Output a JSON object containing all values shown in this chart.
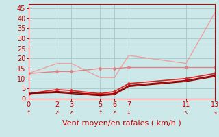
{
  "xlabel": "Vent moyen/en rafales ( km/h )",
  "background_color": "#cce8e8",
  "grid_color": "#aacccc",
  "ylim": [
    0,
    47
  ],
  "yticks": [
    0,
    5,
    10,
    15,
    20,
    25,
    30,
    35,
    40,
    45
  ],
  "xticks": [
    0,
    2,
    3,
    5,
    6,
    7,
    11,
    13
  ],
  "xlim": [
    0,
    13
  ],
  "lines": [
    {
      "x": [
        0,
        2,
        3,
        5,
        6,
        7,
        11,
        13
      ],
      "y": [
        12.5,
        17.5,
        17.5,
        10.5,
        10.5,
        21.5,
        17.5,
        42.5
      ],
      "color": "#f0a0a0",
      "lw": 1.0,
      "marker": null
    },
    {
      "x": [
        0,
        2,
        3,
        5,
        6,
        7,
        11,
        13
      ],
      "y": [
        12.5,
        13.5,
        13.5,
        15.0,
        15.0,
        15.5,
        15.5,
        15.5
      ],
      "color": "#e08080",
      "lw": 1.0,
      "marker": "D",
      "markersize": 2.5
    },
    {
      "x": [
        0,
        2,
        3,
        5,
        6,
        7,
        11,
        13
      ],
      "y": [
        2.5,
        4.5,
        4.0,
        2.5,
        3.5,
        7.5,
        10.0,
        12.5
      ],
      "color": "#dd2222",
      "lw": 1.2,
      "marker": "D",
      "markersize": 2.5
    },
    {
      "x": [
        0,
        2,
        3,
        5,
        6,
        7,
        11,
        13
      ],
      "y": [
        2.5,
        3.5,
        3.0,
        2.0,
        2.5,
        6.5,
        9.0,
        11.5
      ],
      "color": "#aa0000",
      "lw": 1.2,
      "marker": null
    },
    {
      "x": [
        0,
        2,
        3,
        5,
        6,
        7,
        11,
        13
      ],
      "y": [
        2.5,
        3.0,
        2.5,
        1.5,
        2.0,
        6.0,
        8.5,
        11.0
      ],
      "color": "#880000",
      "lw": 1.0,
      "marker": null
    }
  ],
  "arrow_chars": [
    "↑",
    "↗",
    "↗",
    "↑",
    "↗",
    "↓",
    "↖",
    "↘"
  ],
  "xlabel_color": "#cc0000",
  "xlabel_fontsize": 8,
  "tick_color": "#cc0000",
  "axis_color": "#cc0000",
  "tick_fontsize": 7
}
